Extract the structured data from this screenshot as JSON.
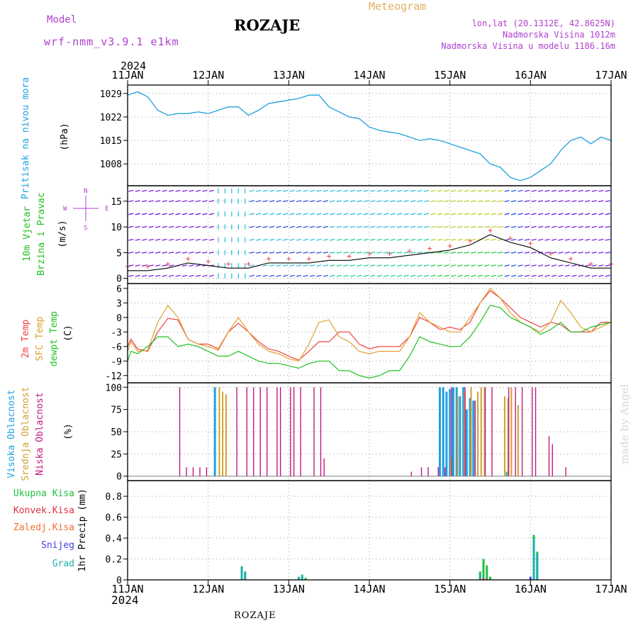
{
  "header": {
    "model_label": "Model",
    "model_name": "wrf-nmm_v3.9.1 e1km",
    "title": "ROZAJE",
    "meteogram_label": "Meteogram",
    "coords": "lon,lat (20.1312E, 42.8625N)",
    "elevation": "Nadmorska Visina 1012m",
    "model_elevation": "Nadmorska Visina u modelu 1186.16m",
    "year_top": "2024",
    "year_bottom": "2024",
    "footer_station": "ROZAJE",
    "watermark": "made by Angel"
  },
  "colors": {
    "purple": "#b040d0",
    "gold": "#e0b060",
    "pressure": "#20a0e0",
    "temp2m": "#f04040",
    "sfc": "#e0a030",
    "dewpt": "#20c020",
    "high_cloud": "#20a0e0",
    "mid_cloud": "#d0a030",
    "low_cloud": "#c01880",
    "precip_total": "#20c040",
    "precip_conv": "#e03040",
    "precip_frz": "#f07030",
    "precip_snow": "#4040e0",
    "precip_grad": "#20b0b0",
    "grid": "#999999"
  },
  "x_axis": {
    "ticks": [
      "11JAN",
      "12JAN",
      "13JAN",
      "14JAN",
      "15JAN",
      "16JAN",
      "17JAN"
    ]
  },
  "panel_labels": {
    "pressure": [
      "Pritisak na nivou mora",
      "(hPa)"
    ],
    "wind": [
      "10m Vjetar",
      "Brzina i Pravac",
      "(m/s)"
    ],
    "wind_compass": {
      "n": "N",
      "w": "W",
      "e": "E",
      "s": "S"
    },
    "temp": [
      "2m Temp",
      "SFC Temp",
      "dewpt Temp",
      "(C)"
    ],
    "cloud": [
      "Visoka Oblacnost",
      "Srednja Oblacnost",
      "Niska Oblacnost",
      "(%)"
    ],
    "precip": [
      "Ukupna Kisa",
      "Konvek.Kisa",
      "Zaledj.Kisa",
      "Snijeg",
      "Grad",
      "1hr Precip (mm)"
    ]
  },
  "chart_data": [
    {
      "type": "line",
      "title": "Pritisak na nivou mora",
      "ylabel": "(hPa)",
      "ylim": [
        1001.5,
        1031.5
      ],
      "yticks": [
        1008,
        1015,
        1022,
        1029
      ],
      "grid": true,
      "series": [
        {
          "name": "Pritisak na nivou mora",
          "x": [
            0,
            3,
            6,
            9,
            12,
            15,
            18,
            21,
            24,
            27,
            30,
            33,
            36,
            39,
            42,
            45,
            48,
            51,
            54,
            57,
            60,
            63,
            66,
            69,
            72,
            75,
            78,
            81,
            84,
            87,
            90,
            93,
            96,
            99,
            102,
            105,
            108,
            111,
            114,
            117,
            120,
            123,
            126,
            129,
            132,
            135,
            138,
            141,
            144
          ],
          "values": [
            1028.5,
            1029.5,
            1028,
            1024,
            1022.5,
            1023,
            1023,
            1023.5,
            1023,
            1024,
            1025,
            1025,
            1022.5,
            1024,
            1026,
            1026.5,
            1027,
            1027.5,
            1028.5,
            1028.5,
            1025,
            1023.5,
            1022,
            1021.5,
            1019,
            1018,
            1017.5,
            1017,
            1016,
            1015,
            1015.5,
            1015,
            1014,
            1013,
            1012,
            1011,
            1008,
            1007,
            1004,
            1003,
            1004,
            1006,
            1008,
            1012,
            1015,
            1016,
            1014,
            1016,
            1015
          ]
        }
      ]
    },
    {
      "type": "line",
      "title": "10m Vjetar Brzina i Pravac",
      "ylabel": "(m/s)",
      "ylim": [
        -1,
        18
      ],
      "yticks": [
        0,
        5,
        10,
        15
      ],
      "grid": true,
      "series": [
        {
          "name": "wind speed",
          "x": [
            0,
            6,
            12,
            18,
            24,
            30,
            36,
            42,
            48,
            54,
            60,
            66,
            72,
            78,
            84,
            90,
            96,
            102,
            108,
            114,
            120,
            126,
            132,
            138,
            144
          ],
          "values": [
            1.5,
            1.5,
            2,
            3,
            2.5,
            2,
            2,
            3,
            3,
            3,
            3.5,
            3.5,
            4,
            4,
            4.5,
            5,
            5.5,
            6.5,
            8.5,
            7,
            6,
            4,
            3,
            2,
            2
          ]
        }
      ],
      "barbs_time_step_hours": 6
    },
    {
      "type": "line",
      "title": "2m Temp / SFC Temp / dewpt Temp",
      "ylabel": "(C)",
      "ylim": [
        -13.5,
        7
      ],
      "yticks": [
        -12,
        -9,
        -6,
        -3,
        0,
        3,
        6
      ],
      "grid": true,
      "x": [
        0,
        1,
        3,
        6,
        9,
        12,
        15,
        18,
        21,
        24,
        27,
        30,
        33,
        36,
        39,
        42,
        45,
        48,
        51,
        54,
        57,
        60,
        63,
        66,
        69,
        72,
        75,
        78,
        81,
        84,
        87,
        90,
        93,
        96,
        99,
        102,
        105,
        108,
        111,
        114,
        117,
        120,
        123,
        126,
        129,
        132,
        135,
        138,
        141,
        144
      ],
      "series": [
        {
          "name": "2m Temp",
          "values": [
            -6,
            -4.5,
            -6.5,
            -7,
            -3,
            -0.2,
            -0.5,
            -4.5,
            -5.5,
            -5.5,
            -6.5,
            -3,
            -1.2,
            -3,
            -5,
            -6.5,
            -7,
            -8,
            -8.8,
            -7,
            -5,
            -5,
            -3,
            -3,
            -5.5,
            -6.5,
            -6,
            -6,
            -6,
            -4,
            0,
            -1,
            -2.5,
            -2,
            -2.5,
            -1,
            3,
            5.5,
            4,
            2,
            0,
            -1,
            -2,
            -1,
            -1.5,
            -3,
            -3,
            -3,
            -1,
            -1
          ]
        },
        {
          "name": "SFC Temp",
          "values": [
            -7,
            -5,
            -7,
            -6.8,
            -1,
            2.5,
            0,
            -4.5,
            -5.5,
            -6,
            -6.8,
            -3,
            0,
            -3,
            -5.5,
            -7,
            -7.5,
            -8.5,
            -9,
            -5.5,
            -1,
            -0.5,
            -4,
            -5,
            -7,
            -7.5,
            -7,
            -7,
            -7,
            -4,
            1,
            -1,
            -2,
            -3,
            -3,
            0,
            3,
            6,
            4,
            1,
            -1,
            -2,
            -3,
            -1,
            3.5,
            1,
            -2,
            -3,
            -2,
            -1
          ]
        },
        {
          "name": "dewpt Temp",
          "values": [
            -9,
            -7,
            -7.5,
            -6,
            -4,
            -4,
            -6,
            -5.5,
            -6,
            -7,
            -8,
            -8,
            -7,
            -8,
            -9,
            -9.5,
            -9.5,
            -10,
            -10.5,
            -9.5,
            -9,
            -9,
            -11,
            -11,
            -12,
            -12.5,
            -12,
            -11,
            -11,
            -8,
            -4,
            -5,
            -5.5,
            -6,
            -6,
            -4,
            -1,
            2.5,
            2,
            0,
            -1,
            -2,
            -3.5,
            -2.5,
            -1,
            -3,
            -3,
            -2,
            -1.5,
            -1
          ]
        }
      ]
    },
    {
      "type": "bar",
      "title": "Oblacnost",
      "ylabel": "(%)",
      "ylim": [
        -5,
        105
      ],
      "yticks": [
        0,
        25,
        50,
        75,
        100
      ],
      "grid": true,
      "series": [
        {
          "name": "Visoka Oblacnost",
          "bars": [
            [
              26,
              100
            ],
            [
              93,
              100
            ],
            [
              94,
              100
            ],
            [
              95,
              95
            ],
            [
              96,
              98
            ],
            [
              97,
              100
            ],
            [
              98,
              100
            ],
            [
              99,
              90
            ],
            [
              100,
              100
            ],
            [
              101,
              75
            ],
            [
              102,
              88
            ],
            [
              103,
              85
            ],
            [
              113,
              5
            ]
          ]
        },
        {
          "name": "Srednja Oblacnost",
          "bars": [
            [
              27,
              100
            ],
            [
              28,
              95
            ],
            [
              29,
              92
            ],
            [
              96,
              20
            ],
            [
              98,
              90
            ],
            [
              100,
              95
            ],
            [
              102,
              100
            ],
            [
              104,
              95
            ],
            [
              105,
              100
            ],
            [
              106,
              100
            ],
            [
              112,
              90
            ],
            [
              113,
              88
            ],
            [
              114,
              100
            ],
            [
              116,
              80
            ]
          ]
        },
        {
          "name": "Niska Oblacnost",
          "bars": [
            [
              15,
              100
            ],
            [
              17,
              10
            ],
            [
              19,
              10
            ],
            [
              21,
              10
            ],
            [
              23,
              10
            ],
            [
              32,
              100
            ],
            [
              35,
              100
            ],
            [
              37,
              100
            ],
            [
              39,
              100
            ],
            [
              41,
              100
            ],
            [
              44,
              100
            ],
            [
              45,
              100
            ],
            [
              48,
              100
            ],
            [
              49,
              100
            ],
            [
              51,
              100
            ],
            [
              55,
              100
            ],
            [
              57,
              100
            ],
            [
              58,
              20
            ],
            [
              84,
              5
            ],
            [
              87,
              10
            ],
            [
              89,
              10
            ],
            [
              92,
              10
            ],
            [
              94,
              10
            ],
            [
              96,
              100
            ],
            [
              100,
              100
            ],
            [
              103,
              85
            ],
            [
              106,
              100
            ],
            [
              108,
              100
            ],
            [
              113,
              100
            ],
            [
              115,
              100
            ],
            [
              117,
              100
            ],
            [
              120,
              100
            ],
            [
              121,
              100
            ],
            [
              125,
              45
            ],
            [
              126,
              36
            ],
            [
              130,
              10
            ]
          ]
        }
      ]
    },
    {
      "type": "bar",
      "title": "1hr Precip",
      "ylabel": "1hr Precip (mm)",
      "ylim": [
        0,
        0.95
      ],
      "yticks": [
        0,
        0.2,
        0.4,
        0.6,
        0.8
      ],
      "grid": true,
      "series": [
        {
          "name": "Ukupna Kisa",
          "bars": [
            [
              34,
              0.13
            ],
            [
              35,
              0.08
            ],
            [
              51,
              0.03
            ],
            [
              52,
              0.05
            ],
            [
              53,
              0.02
            ],
            [
              105,
              0.08
            ],
            [
              106,
              0.2
            ],
            [
              107,
              0.14
            ],
            [
              108,
              0.03
            ],
            [
              121,
              0.43
            ],
            [
              122,
              0.27
            ]
          ]
        },
        {
          "name": "Konvek.Kisa",
          "bars": [
            [
              106,
              0.02
            ]
          ]
        },
        {
          "name": "Zaledj.Kisa",
          "bars": []
        },
        {
          "name": "Snijeg",
          "bars": [
            [
              120,
              0.03
            ]
          ]
        },
        {
          "name": "Grad",
          "bars": [
            [
              34,
              0.12
            ],
            [
              35,
              0.07
            ],
            [
              51,
              0.02
            ],
            [
              52,
              0.04
            ],
            [
              105,
              0.06
            ],
            [
              121,
              0.4
            ],
            [
              122,
              0.25
            ]
          ]
        }
      ]
    }
  ]
}
